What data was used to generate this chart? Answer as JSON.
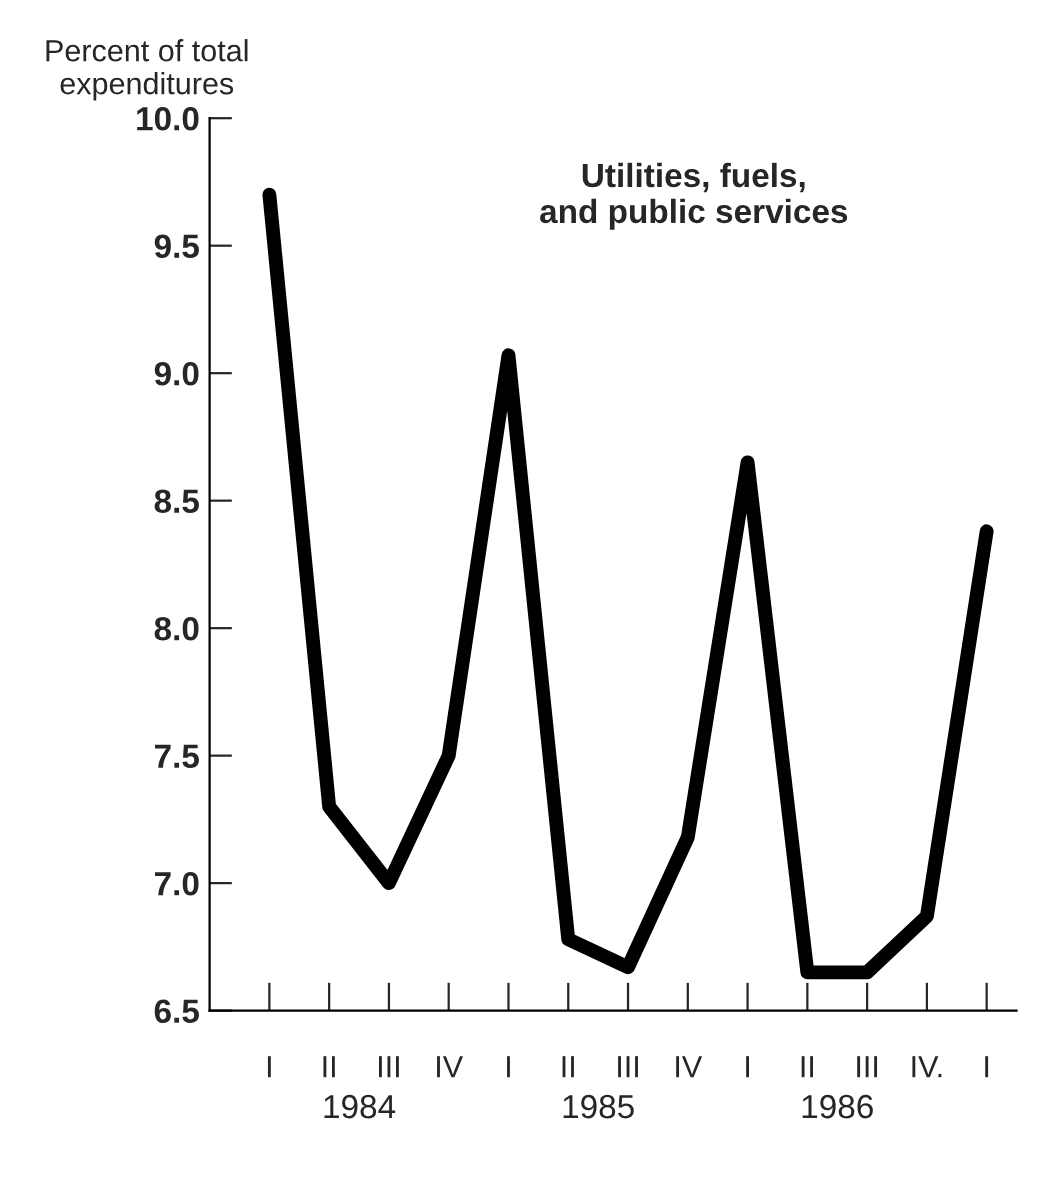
{
  "chart_data": {
    "type": "line",
    "title": "Utilities, fuels,\nand public services",
    "ylabel": "Percent of total\nexpenditures",
    "categories": [
      "I",
      "II",
      "III",
      "IV",
      "I",
      "II",
      "III",
      "IV",
      "I",
      "II",
      "III",
      "IV.",
      "I"
    ],
    "series": [
      {
        "color": "#000000",
        "values": [
          9.7,
          7.3,
          7.0,
          7.5,
          9.07,
          6.78,
          6.67,
          7.18,
          8.65,
          6.65,
          6.65,
          6.87,
          8.38
        ]
      }
    ],
    "ylim": [
      6.5,
      10.0
    ],
    "yticks": [
      {
        "value": 6.5,
        "label": "6.5"
      },
      {
        "value": 7.0,
        "label": "7.0"
      },
      {
        "value": 7.5,
        "label": "7.5"
      },
      {
        "value": 8.0,
        "label": "8.0"
      },
      {
        "value": 8.5,
        "label": "8.5"
      },
      {
        "value": 9.0,
        "label": "9.0"
      },
      {
        "value": 9.5,
        "label": "9.5"
      },
      {
        "value": 10.0,
        "label": "10.0"
      }
    ],
    "annotations": [
      "1984",
      "1985",
      "1986"
    ],
    "grid": false,
    "legend": false,
    "marker": "none",
    "line_style": "solid"
  }
}
